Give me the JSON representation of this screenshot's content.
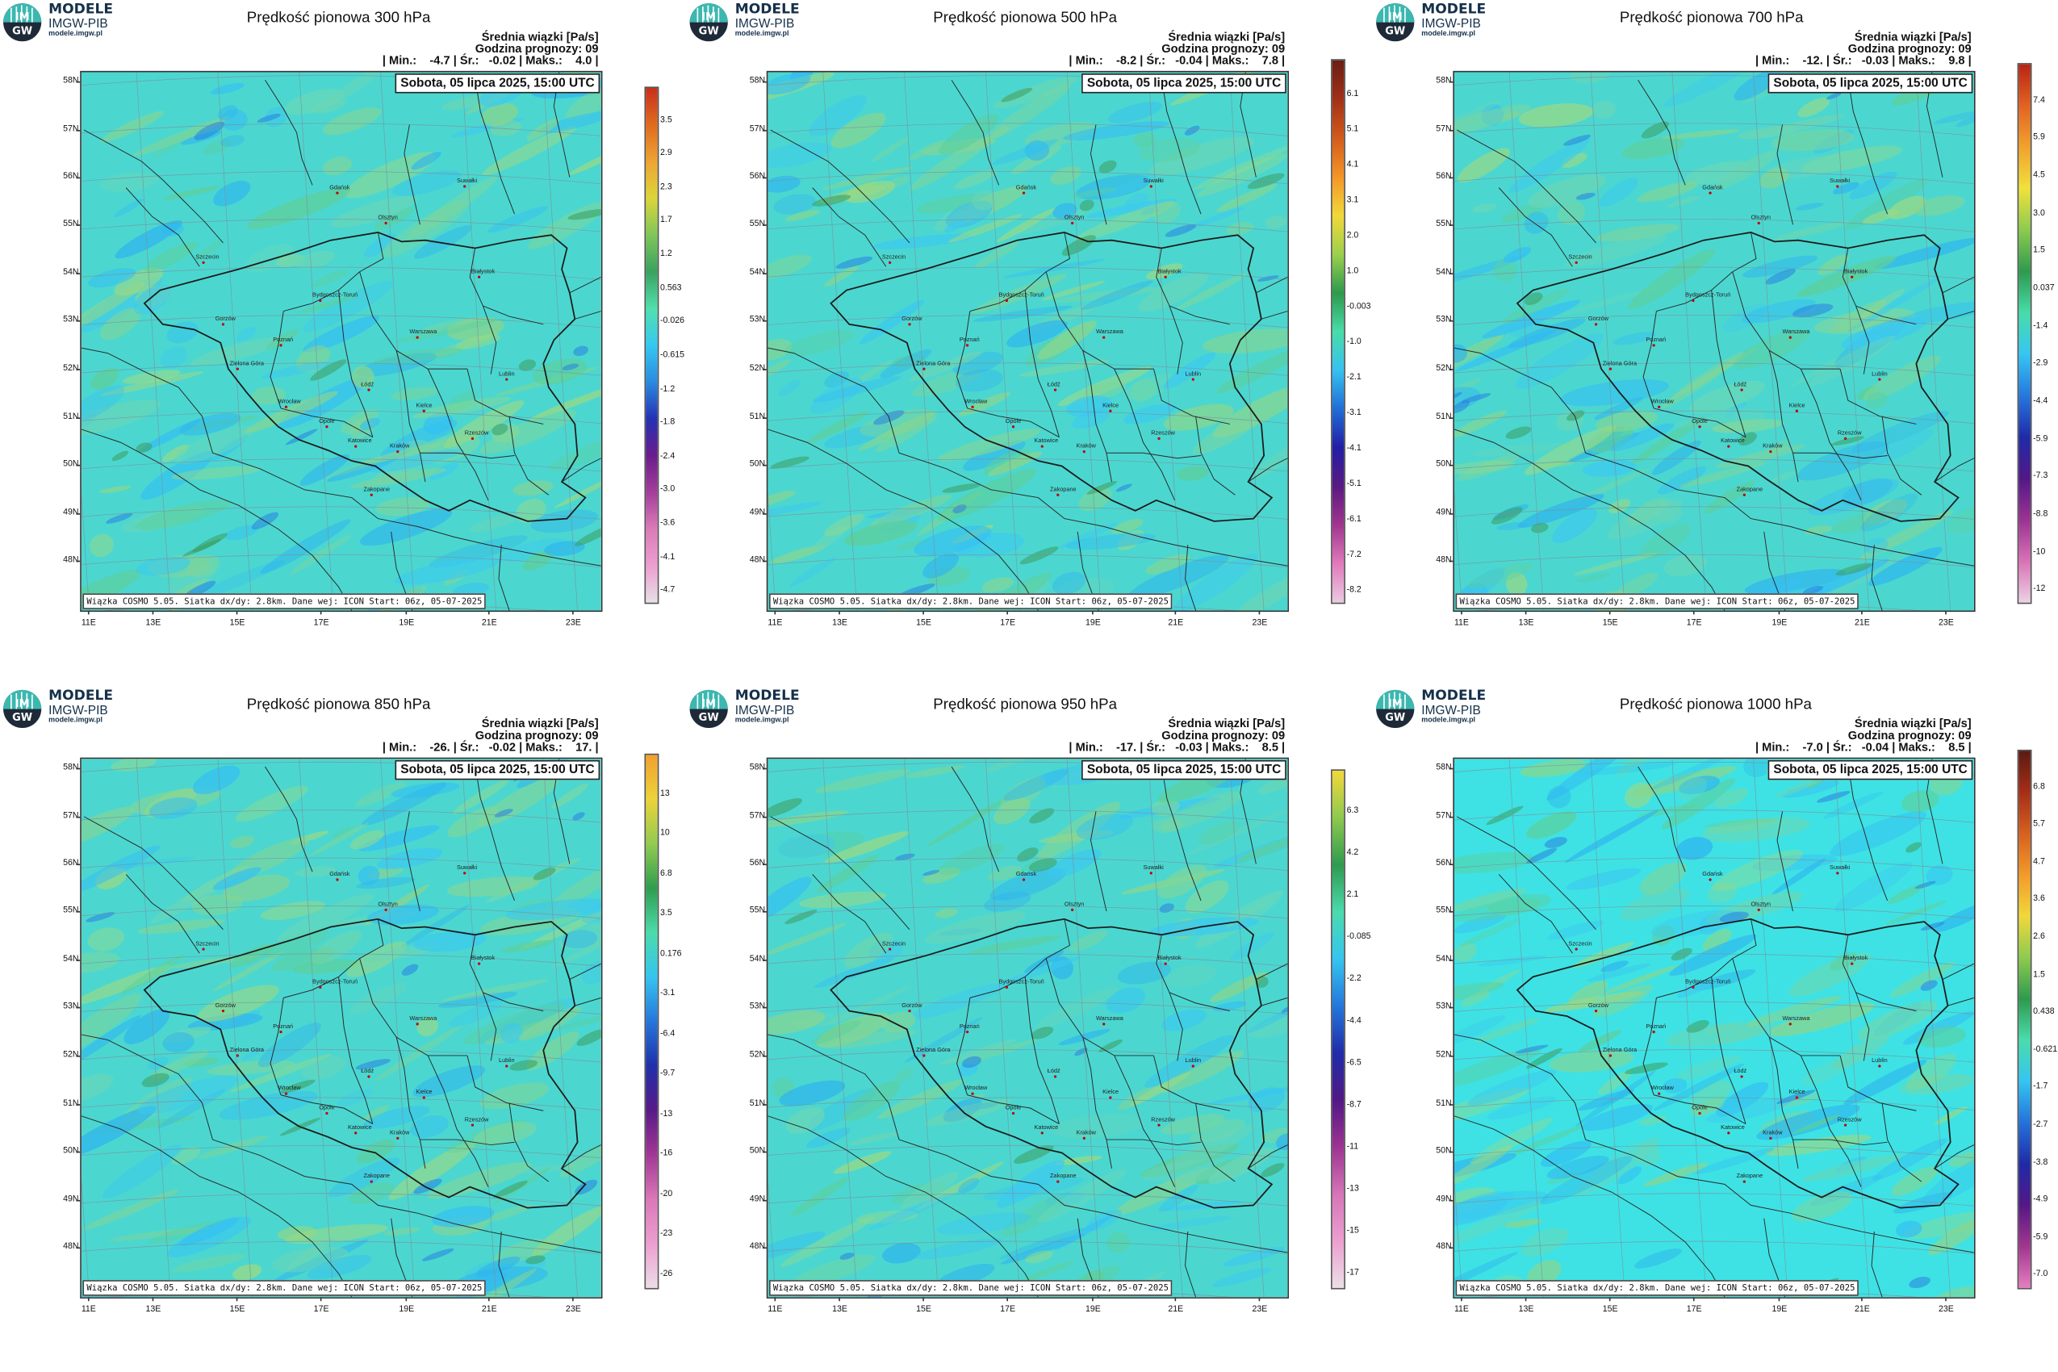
{
  "brand": {
    "line1": "MODELE",
    "line2": "IMGW-PIB",
    "line3": "modele.imgw.pl",
    "logo_text_top": "IM",
    "logo_text_bottom": "GW"
  },
  "common": {
    "subtitle": "Średnia wiązki [Pa/s]",
    "forecast_hour": "Godzina prognozy: 09",
    "date": "Sobota, 05 lipca 2025, 15:00 UTC",
    "footer": "Wiązka COSMO 5.05. Siatka dx/dy: 2.8km. Dane wej: ICON Start: 06z, 05-07-2025",
    "lat_labels": [
      "58N",
      "57N",
      "56N",
      "55N",
      "54N",
      "53N",
      "52N",
      "51N",
      "50N",
      "49N",
      "48N"
    ],
    "lon_labels": [
      "11E",
      "13E",
      "15E",
      "17E",
      "19E",
      "21E",
      "23E"
    ]
  },
  "cities": [
    "Gdańsk",
    "Suwałki",
    "Olsztyn",
    "Szczecin",
    "Bydgoszcz-Toruń",
    "Białystok",
    "Gorzów",
    "Warszawa",
    "Poznań",
    "Zielona Góra",
    "Łódź",
    "Lublin",
    "Wrocław",
    "Kielce",
    "Opole",
    "Rzeszów",
    "Katowice",
    "Kraków",
    "Zakopane"
  ],
  "panels": [
    {
      "title": "Prędkość pionowa 300 hPa",
      "stats": "| Min.:    -4.7 | Śr.:   -0.02 | Maks.:    4.0 |",
      "colorbar_labels": [
        "3.5",
        "2.9",
        "2.3",
        "1.7",
        "1.2",
        "0.563",
        "-0.026",
        "-0.615",
        "-1.2",
        "-1.8",
        "-2.4",
        "-3.0",
        "-3.6",
        "-4.1",
        "-4.7"
      ],
      "colorbar_colors": [
        "#c8301c",
        "#e06a1e",
        "#eea433",
        "#dcd53a",
        "#7fc659",
        "#3aa160",
        "#51e0ae",
        "#35c8f2",
        "#2a8be0",
        "#2431b5",
        "#6a1c8c",
        "#a43e9a",
        "#db7bb8",
        "#ec9fd0",
        "#e7e0e6"
      ]
    },
    {
      "title": "Prędkość pionowa 500 hPa",
      "stats": "| Min.:    -8.2 | Śr.:   -0.04 | Maks.:    7.8 |",
      "colorbar_labels": [
        "6.1",
        "5.1",
        "4.1",
        "3.1",
        "2.0",
        "1.0",
        "-0.003",
        "-1.0",
        "-2.1",
        "-3.1",
        "-4.1",
        "-5.1",
        "-6.1",
        "-7.2",
        "-8.2"
      ],
      "colorbar_colors": [
        "#6b1e15",
        "#a03018",
        "#d35a1b",
        "#f49527",
        "#f1d838",
        "#9dd04d",
        "#2c9a4c",
        "#49dca9",
        "#36c2f0",
        "#1f6ed7",
        "#221ea5",
        "#5a1a82",
        "#a1358f",
        "#e17bbd",
        "#eacbe0"
      ]
    },
    {
      "title": "Prędkość pionowa 700 hPa",
      "stats": "| Min.:    -12. | Śr.:   -0.03 | Maks.:    9.8 |",
      "colorbar_labels": [
        "7.4",
        "5.9",
        "4.5",
        "3.0",
        "1.5",
        "0.037",
        "-1.4",
        "-2.9",
        "-4.4",
        "-5.9",
        "-7.3",
        "-8.8",
        "-10",
        "-12"
      ],
      "colorbar_colors": [
        "#b82514",
        "#e26322",
        "#f1a22e",
        "#f0e13c",
        "#8ccb4f",
        "#2d9a4e",
        "#48dcaa",
        "#36c6f2",
        "#2678de",
        "#1f2ba8",
        "#531887",
        "#9a3391",
        "#d872b6",
        "#ebd3e3"
      ]
    },
    {
      "title": "Prędkość pionowa 850 hPa",
      "stats": "| Min.:    -26. | Śr.:   -0.02 | Maks.:    17. |",
      "colorbar_labels": [
        "13",
        "10",
        "6.8",
        "3.5",
        "0.176",
        "-3.1",
        "-6.4",
        "-9.7",
        "-13",
        "-16",
        "-20",
        "-23",
        "-26"
      ],
      "colorbar_colors": [
        "#f1a02e",
        "#ecd33a",
        "#92cb50",
        "#2f9d4f",
        "#4bdcab",
        "#35c4f1",
        "#2476db",
        "#2030aa",
        "#581a88",
        "#a13794",
        "#da77b8",
        "#ec9fd0",
        "#ebdde6"
      ]
    },
    {
      "title": "Prędkość pionowa 950 hPa",
      "stats": "| Min.:    -17. | Śr.:   -0.03 | Maks.:    8.5 |",
      "colorbar_labels": [
        "6.3",
        "4.2",
        "2.1",
        "-0.085",
        "-2.2",
        "-4.4",
        "-6.5",
        "-8.7",
        "-11",
        "-13",
        "-15",
        "-17"
      ],
      "colorbar_colors": [
        "#f3d83a",
        "#8ec94e",
        "#2f9b4e",
        "#4adbad",
        "#35c5f1",
        "#2476db",
        "#1f2da9",
        "#501886",
        "#9d3392",
        "#d674b7",
        "#ec9fd0",
        "#ebdfe6"
      ]
    },
    {
      "title": "Prędkość pionowa 1000 hPa",
      "stats": "| Min.:    -7.0 | Śr.:   -0.04 | Maks.:    8.5 |",
      "colorbar_labels": [
        "6.8",
        "5.7",
        "4.7",
        "3.6",
        "2.6",
        "1.5",
        "0.438",
        "-0.621",
        "-1.7",
        "-2.7",
        "-3.8",
        "-4.9",
        "-5.9",
        "-7.0"
      ],
      "colorbar_colors": [
        "#5b1a12",
        "#a62e17",
        "#d7601f",
        "#f39a2b",
        "#f0d83a",
        "#8ecb4f",
        "#2d9a4d",
        "#4adcac",
        "#35c5f1",
        "#2472da",
        "#1f2aa7",
        "#551886",
        "#a1368f",
        "#e57fc0"
      ]
    }
  ]
}
